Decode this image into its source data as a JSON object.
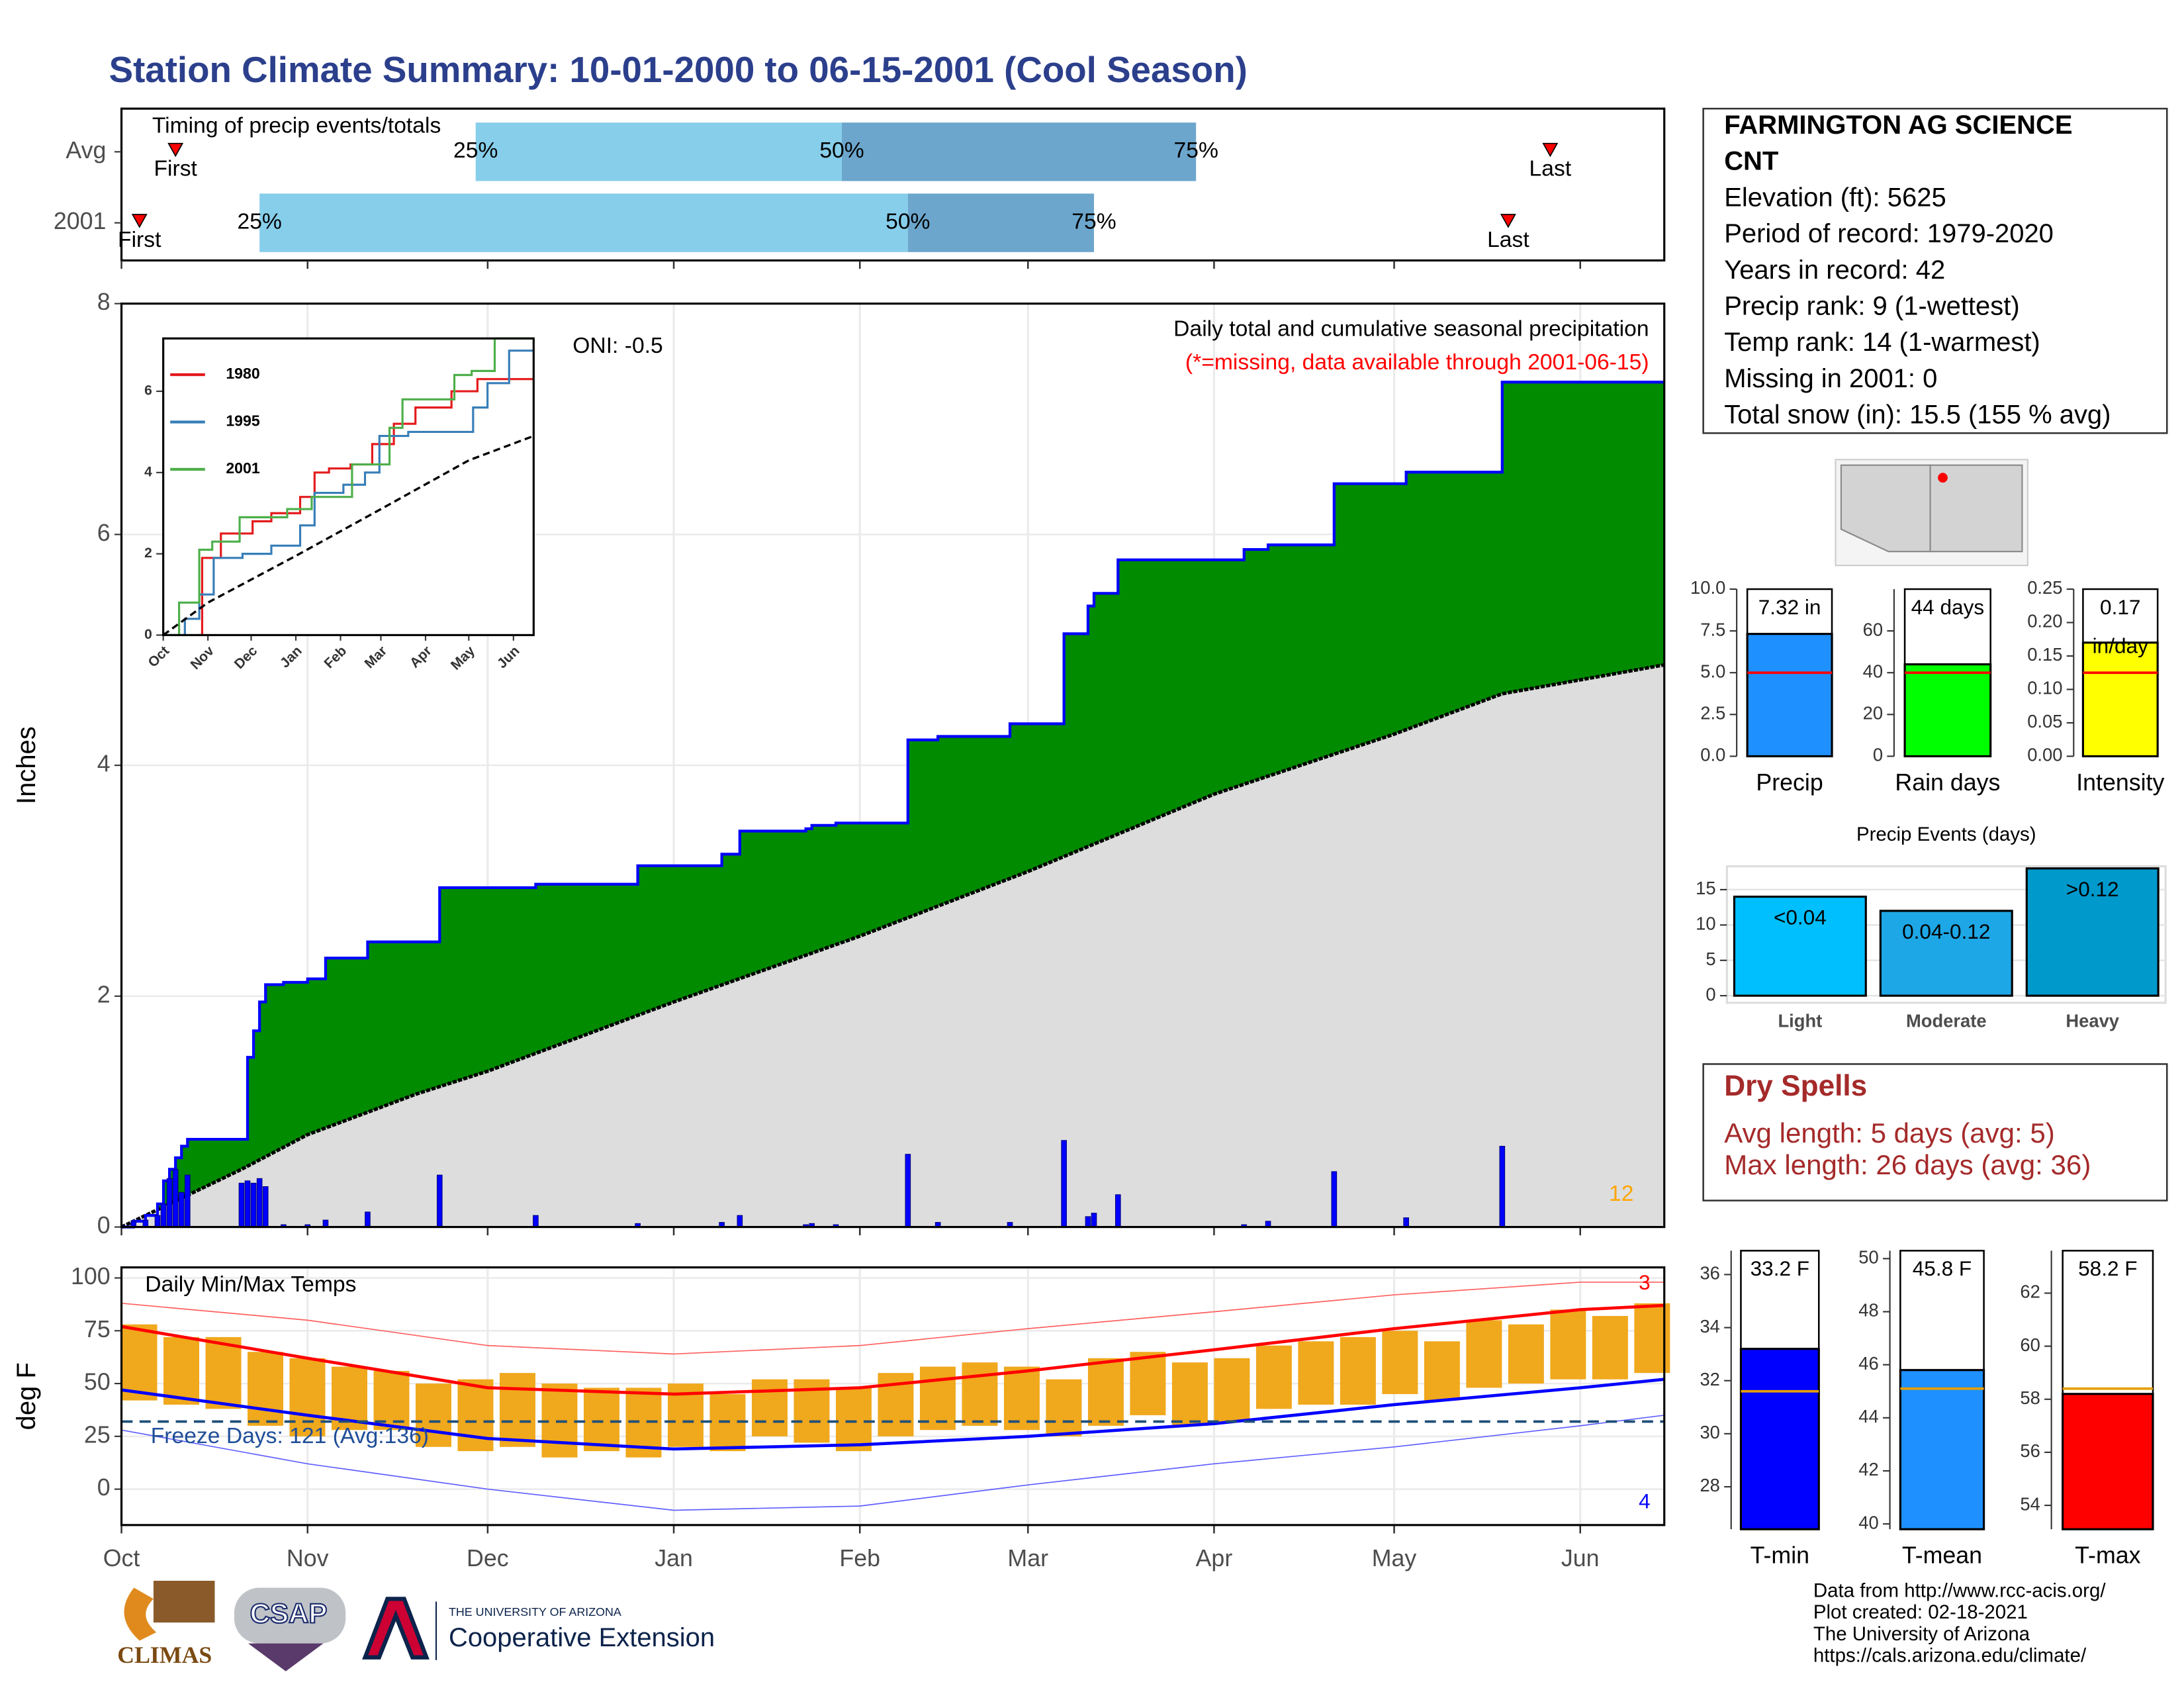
{
  "title": "Station Climate Summary: 10-01-2000 to 06-15-2001 (Cool Season)",
  "station_info": {
    "name_lines": [
      "FARMINGTON AG SCIENCE",
      "CNT"
    ],
    "lines": [
      "Elevation (ft): 5625",
      "Period of record: 1979-2020",
      "Years in record: 42",
      "Precip rank: 9 (1-wettest)",
      "Temp rank: 14 (1-warmest)",
      "Missing in 2001: 0",
      "Total snow (in): 15.5 (155 % avg)"
    ]
  },
  "dry_spells": {
    "title": "Dry Spells",
    "lines": [
      "Avg length: 5 days (avg: 5)",
      "Max length: 26 days (avg: 36)"
    ]
  },
  "footer_lines": [
    "Data from http://www.rcc-acis.org/",
    "Plot created: 02-18-2021",
    "The University of Arizona",
    "https://cals.arizona.edu/climate/"
  ],
  "logos": {
    "climas": "CLIMAS",
    "csap": "CSAP",
    "ua_small": "THE UNIVERSITY OF ARIZONA",
    "ua_extension": "Cooperative Extension"
  },
  "chart_data": [
    {
      "type": "timeline",
      "title": "Timing of precip events/totals",
      "categories": [
        "Avg",
        "2001"
      ],
      "first": [
        9,
        3
      ],
      "q25": [
        59,
        23
      ],
      "q50": [
        120,
        131
      ],
      "q75": [
        179,
        162
      ],
      "last": [
        238,
        231
      ],
      "quantile_labels": [
        "25%",
        "50%",
        "75%"
      ],
      "first_label": "First",
      "last_label": "Last",
      "colors": [
        "#87ceeb",
        "#6ca6cd"
      ],
      "marker_color": "#ff0000"
    },
    {
      "type": "step-area",
      "ylabel": "Inches",
      "ylim": [
        0,
        8
      ],
      "yticks": [
        0,
        2,
        4,
        6,
        8
      ],
      "grid": true,
      "oni": "ONI: -0.5",
      "subtitle": "Daily total and cumulative seasonal precipitation",
      "note": "(*=missing, data available through 2001-06-15)",
      "marker_count": 12,
      "cumulative": {
        "x": [
          0,
          2,
          4,
          6,
          7,
          8,
          9,
          10,
          11,
          21,
          22,
          23,
          24,
          27,
          31,
          34,
          41,
          53,
          69,
          86,
          100,
          103,
          114,
          115,
          119,
          131,
          136,
          148,
          157,
          161,
          162,
          166,
          187,
          191,
          202,
          214,
          230,
          257
        ],
        "values": [
          0,
          0.05,
          0.1,
          0.2,
          0.4,
          0.5,
          0.6,
          0.7,
          0.76,
          1.47,
          1.7,
          1.95,
          2.1,
          2.12,
          2.15,
          2.33,
          2.47,
          2.94,
          2.97,
          3.13,
          3.23,
          3.43,
          3.45,
          3.48,
          3.5,
          4.22,
          4.25,
          4.36,
          5.14,
          5.38,
          5.49,
          5.78,
          5.87,
          5.91,
          6.44,
          6.54,
          7.32,
          7.32
        ],
        "color": "#008b00",
        "line_color": "#0000ff"
      },
      "average": {
        "x": [
          0,
          10,
          20,
          31,
          49,
          61,
          92,
          123,
          151,
          182,
          212,
          230,
          257
        ],
        "values": [
          0,
          0.25,
          0.5,
          0.8,
          1.15,
          1.35,
          1.95,
          2.52,
          3.08,
          3.75,
          4.27,
          4.62,
          4.87
        ],
        "color": "#dddddd",
        "line_color": "#000000"
      },
      "daily": {
        "x": [
          2,
          4,
          6,
          7,
          8,
          9,
          10,
          11,
          20,
          21,
          22,
          23,
          24,
          27,
          31,
          34,
          41,
          53,
          69,
          86,
          100,
          103,
          114,
          115,
          119,
          131,
          136,
          148,
          157,
          161,
          162,
          166,
          187,
          191,
          202,
          214,
          230
        ],
        "values": [
          0.05,
          0.06,
          0.1,
          0.2,
          0.42,
          0.5,
          0.3,
          0.45,
          0.38,
          0.4,
          0.38,
          0.42,
          0.35,
          0.02,
          0.02,
          0.06,
          0.13,
          0.45,
          0.1,
          0.03,
          0.04,
          0.1,
          0.02,
          0.03,
          0.02,
          0.63,
          0.04,
          0.04,
          0.75,
          0.09,
          0.12,
          0.28,
          0.02,
          0.05,
          0.48,
          0.08,
          0.7
        ],
        "color": "#0000ff"
      }
    },
    {
      "type": "line",
      "ylim": [
        0,
        7.3
      ],
      "yticks": [
        0,
        2,
        4,
        6
      ],
      "series": [
        {
          "name": "1980",
          "color": "#e41a1c",
          "x": [
            24,
            27,
            40,
            62,
            75,
            95,
            105,
            115,
            130,
            145,
            160,
            175,
            200,
            218,
            257
          ],
          "values": [
            0,
            1.9,
            2.5,
            2.8,
            3.0,
            3.4,
            4.0,
            4.1,
            4.2,
            4.7,
            5.2,
            5.6,
            6.0,
            6.3,
            6.3
          ]
        },
        {
          "name": "1995",
          "color": "#377eb8",
          "x": [
            0,
            15,
            25,
            35,
            55,
            75,
            95,
            105,
            125,
            140,
            150,
            170,
            205,
            215,
            225,
            240,
            257
          ],
          "values": [
            0,
            0.4,
            1.0,
            1.9,
            2.0,
            2.2,
            2.7,
            3.5,
            3.7,
            4.0,
            4.9,
            5.0,
            5.0,
            5.6,
            6.2,
            7.0,
            7.0
          ]
        },
        {
          "name": "2001",
          "color": "#4daf4a",
          "x": [
            0,
            11,
            25,
            34,
            53,
            86,
            103,
            131,
            157,
            166,
            202,
            214,
            230,
            257
          ],
          "values": [
            0,
            0.8,
            2.1,
            2.3,
            2.9,
            3.1,
            3.4,
            4.2,
            5.1,
            5.8,
            6.4,
            6.5,
            7.3,
            7.3
          ]
        },
        {
          "color": "#000000",
          "dash": true,
          "x": [
            0,
            31,
            92,
            151,
            212,
            257
          ],
          "values": [
            0,
            0.8,
            1.95,
            3.1,
            4.3,
            4.9
          ]
        }
      ]
    },
    {
      "type": "summary-bar",
      "label": "Precip",
      "value": 7.32,
      "value_label": [
        "7.32 in"
      ],
      "average": 5,
      "color": "#1e90ff",
      "avg_color": "#ff0000",
      "ylim": [
        0,
        10
      ],
      "yticks": [
        {
          "value": 0,
          "label": "0.0"
        },
        2.5,
        {
          "value": 5,
          "label": "5.0"
        },
        7.5,
        {
          "value": 10,
          "label": "10.0"
        }
      ]
    },
    {
      "type": "summary-bar",
      "label": "Rain days",
      "value": 44,
      "value_label": [
        "44 days"
      ],
      "average": 40,
      "color": "#00ff00",
      "avg_color": "#ff0000",
      "ylim": [
        0,
        80
      ],
      "yticks": [
        0,
        20,
        40,
        60
      ]
    },
    {
      "type": "summary-bar",
      "label": "Intensity",
      "value": 0.17,
      "value_label": [
        "0.17",
        "in/day"
      ],
      "average": 0.125,
      "color": "#ffff00",
      "avg_color": "#ff0000",
      "ylim": [
        0,
        0.25
      ],
      "yticks": [
        {
          "value": 0,
          "label": "0.00"
        },
        0.05,
        {
          "value": 0.1,
          "label": "0.10"
        },
        0.15,
        {
          "value": 0.2,
          "label": "0.20"
        },
        0.25
      ]
    },
    {
      "type": "bar",
      "title": "Precip Events (days)",
      "categories": [
        "Light",
        "Moderate",
        "Heavy"
      ],
      "values": [
        14,
        12,
        18
      ],
      "bar_labels": [
        "<0.04",
        "0.04-0.12",
        ">0.12"
      ],
      "colors": [
        "#00bfff",
        "#1ea7e6",
        "#0099cc"
      ],
      "ylim": [
        -1,
        18.3
      ],
      "yticks": [
        0,
        5,
        10,
        15
      ]
    },
    {
      "type": "range-bar",
      "title": "Daily Min/Max Temps",
      "ylabel": "deg F",
      "ylim": [
        -17,
        105
      ],
      "yticks": [
        0,
        25,
        50,
        75,
        100
      ],
      "xlim": [
        0,
        257
      ],
      "xticks": [
        {
          "value": 0,
          "label": "Oct"
        },
        {
          "value": 31,
          "label": "Nov"
        },
        {
          "value": 61,
          "label": "Dec"
        },
        {
          "value": 92,
          "label": "Jan"
        },
        {
          "value": 123,
          "label": "Feb"
        },
        {
          "value": 151,
          "label": "Mar"
        },
        {
          "value": 182,
          "label": "Apr"
        },
        {
          "value": 212,
          "label": "May"
        },
        {
          "value": 243,
          "label": "Jun"
        }
      ],
      "x": [
        0,
        7,
        14,
        21,
        28,
        35,
        42,
        49,
        56,
        63,
        70,
        77,
        84,
        91,
        98,
        105,
        112,
        119,
        126,
        133,
        140,
        147,
        154,
        161,
        168,
        175,
        182,
        189,
        196,
        203,
        210,
        217,
        224,
        231,
        238,
        245,
        252
      ],
      "max": [
        78,
        72,
        72,
        65,
        62,
        58,
        56,
        50,
        52,
        55,
        50,
        48,
        48,
        50,
        45,
        52,
        52,
        48,
        55,
        58,
        60,
        58,
        52,
        62,
        65,
        60,
        62,
        68,
        70,
        72,
        75,
        70,
        80,
        78,
        85,
        82,
        88
      ],
      "min": [
        42,
        40,
        38,
        30,
        25,
        28,
        28,
        20,
        18,
        20,
        15,
        18,
        15,
        20,
        18,
        25,
        22,
        18,
        25,
        28,
        30,
        28,
        25,
        30,
        35,
        30,
        32,
        38,
        40,
        40,
        45,
        42,
        48,
        50,
        52,
        52,
        55
      ],
      "bar_color": "#f0a81c",
      "lines_x": [
        0,
        31,
        61,
        92,
        123,
        151,
        182,
        212,
        243,
        257
      ],
      "lines": [
        {
          "values": [
            77,
            62,
            48,
            45,
            48,
            56,
            66,
            76,
            85,
            87
          ],
          "color": "#ff0000",
          "width": 2.2
        },
        {
          "values": [
            47,
            35,
            24,
            19,
            21,
            25,
            31,
            40,
            48,
            52
          ],
          "color": "#0000ff",
          "width": 2.2
        },
        {
          "values": [
            88,
            80,
            68,
            64,
            68,
            76,
            84,
            92,
            98,
            98
          ],
          "color": "#ff6060",
          "width": 0.8
        },
        {
          "values": [
            28,
            12,
            0,
            -10,
            -8,
            2,
            12,
            20,
            30,
            35
          ],
          "color": "#6060ff",
          "width": 0.8
        }
      ],
      "freeze_threshold": 32,
      "freeze_label": "Freeze Days: 121 (Avg:136)",
      "record_high_count": 3,
      "record_low_count": 4
    },
    {
      "type": "summary-bar",
      "label": "T-min",
      "value": 33.2,
      "value_label": [
        "33.2 F"
      ],
      "average": 31.6,
      "color": "#0000ff",
      "avg_color": "#e69f00",
      "ylim": [
        26.4,
        36.9
      ],
      "yticks": [
        28,
        30,
        32,
        34,
        36
      ]
    },
    {
      "type": "summary-bar",
      "label": "T-mean",
      "value": 45.8,
      "value_label": [
        "45.8 F"
      ],
      "average": 45.1,
      "color": "#1e90ff",
      "avg_color": "#e69f00",
      "ylim": [
        39.8,
        50.3
      ],
      "yticks": [
        40,
        42,
        44,
        46,
        48,
        50
      ]
    },
    {
      "type": "summary-bar",
      "label": "T-max",
      "value": 58.2,
      "value_label": [
        "58.2 F"
      ],
      "average": 58.4,
      "color": "#ff0000",
      "avg_color": "#e69f00",
      "ylim": [
        53.1,
        63.6
      ],
      "yticks": [
        54,
        56,
        58,
        60,
        62
      ]
    }
  ]
}
